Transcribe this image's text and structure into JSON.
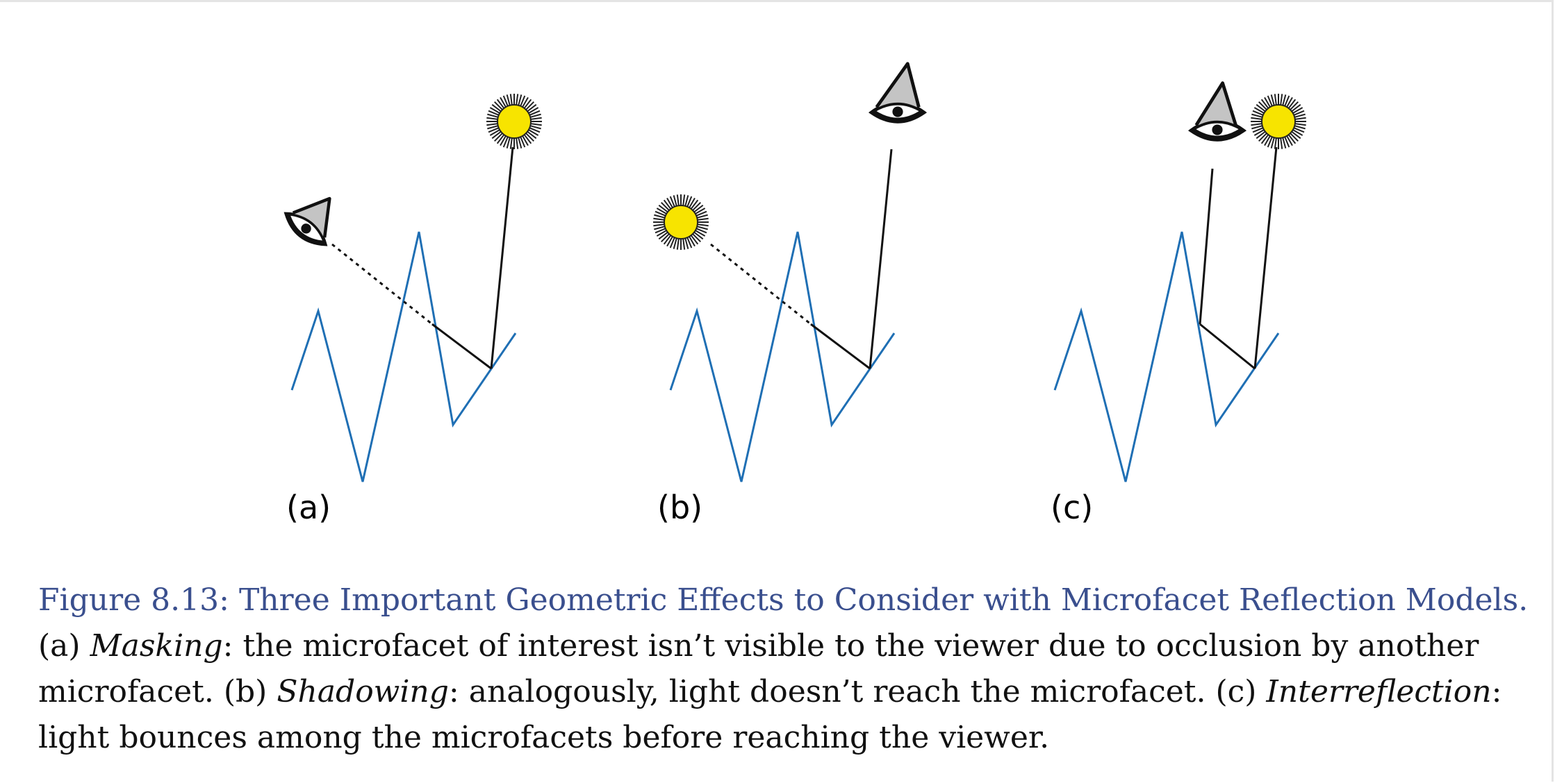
{
  "panels": [
    {
      "label": "(a)"
    },
    {
      "label": "(b)"
    },
    {
      "label": "(c)"
    }
  ],
  "colors": {
    "surface": "#1f6fb4",
    "sun": "#f7e400",
    "eye_fill": "#c4c4c4",
    "caption_title": "#3a4f8e",
    "text": "#111111"
  },
  "icons": [
    "eye-icon",
    "sun-icon"
  ],
  "caption": {
    "title": "Figure 8.13: Three Important Geometric Effects to Consider with Microfacet Reflection Models.",
    "part_a_prefix": "(a) ",
    "part_a_term": "Masking",
    "part_a_text": ": the microfacet of interest isn’t visible to the viewer due to occlusion by another microfacet. ",
    "part_b_prefix": "(b) ",
    "part_b_term": "Shadowing",
    "part_b_text": ": analogously, light doesn’t reach the microfacet. ",
    "part_c_prefix": "(c) ",
    "part_c_term": "Interreflection",
    "part_c_text": ": light bounces among the microfacets before reaching the viewer."
  }
}
